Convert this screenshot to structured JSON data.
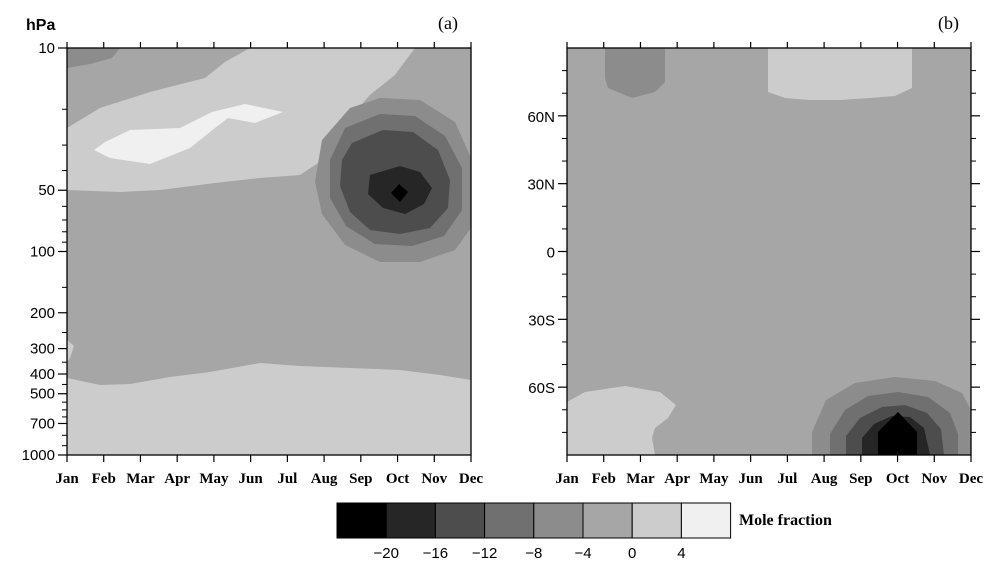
{
  "chart_data": [
    {
      "type": "heatmap",
      "panel_label": "(a)",
      "ylabel": "hPa",
      "x_categories": [
        "Jan",
        "Feb",
        "Mar",
        "Apr",
        "May",
        "Jun",
        "Jul",
        "Aug",
        "Sep",
        "Oct",
        "Nov",
        "Dec"
      ],
      "y_ticks": [
        "10",
        "50",
        "100",
        "200",
        "300",
        "400",
        "500",
        "700",
        "1000"
      ],
      "y_scale": "log",
      "ylim": [
        1000,
        10
      ],
      "features": [
        {
          "region": "upper stratosphere, Jan-Dec",
          "level": 0
        },
        {
          "region": "10-50 hPa, Jan-Jul",
          "level": 4
        },
        {
          "region": "minimum centered Oct, ~50 hPa",
          "level": -20
        },
        {
          "region": "400-1000 hPa, Jan-Dec",
          "level": 0
        }
      ]
    },
    {
      "type": "heatmap",
      "panel_label": "(b)",
      "x_categories": [
        "Jan",
        "Feb",
        "Mar",
        "Apr",
        "May",
        "Jun",
        "Jul",
        "Aug",
        "Sep",
        "Oct",
        "Nov",
        "Dec"
      ],
      "y_ticks": [
        "60N",
        "30N",
        "0",
        "30S",
        "60S"
      ],
      "ylim": [
        -90,
        90
      ],
      "features": [
        {
          "region": "Feb-Mar, >70N",
          "level": -8
        },
        {
          "region": "Jul-Oct, >70N",
          "level": 0
        },
        {
          "region": "Jan-Mar, <60S",
          "level": 0
        },
        {
          "region": "minimum centered Oct, ~80S",
          "level": -20
        }
      ]
    }
  ],
  "colorbar": {
    "label": "Mole fraction",
    "ticks": [
      "−20",
      "−16",
      "−12",
      "−8",
      "−4",
      "0",
      "4"
    ],
    "colors": [
      "#000000",
      "#262626",
      "#4d4d4d",
      "#707070",
      "#8c8c8c",
      "#a6a6a6",
      "#cccccc",
      "#f0f0f0"
    ]
  }
}
